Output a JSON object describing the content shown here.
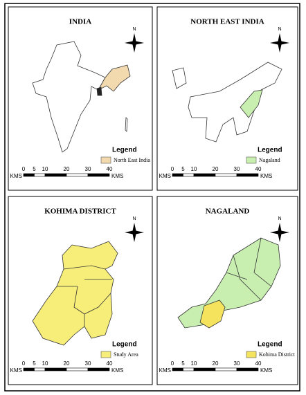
{
  "panels": [
    {
      "title": "INDIA",
      "north": "N",
      "legend": {
        "title": "Legend",
        "label": "North East India",
        "color": "#f3d9ae"
      },
      "scale": {
        "ticks": [
          "0",
          "5",
          "10",
          "20",
          "30",
          "40"
        ],
        "unit_left": "KMS",
        "unit_right": "KMS"
      }
    },
    {
      "title": "NORTH EAST INDIA",
      "north": "N",
      "legend": {
        "title": "Legend",
        "label": "Nagaland",
        "color": "#c8eeb0"
      },
      "scale": {
        "ticks": [
          "0",
          "5",
          "10",
          "20",
          "30",
          "40"
        ],
        "unit_left": "KMS",
        "unit_right": "KMS"
      }
    },
    {
      "title": "KOHIMA DISTRICT",
      "north": "N",
      "legend": {
        "title": "Legend",
        "label": "Study Area",
        "color": "#f7ee7a"
      },
      "scale": {
        "ticks": [
          "0",
          "5",
          "10",
          "20",
          "30",
          "40"
        ],
        "unit_left": "KMS",
        "unit_right": "KMS"
      }
    },
    {
      "title": "NAGALAND",
      "north": "N",
      "legend": {
        "title": "Legend",
        "label": "Kohima District",
        "color": "#f5e35e"
      },
      "scale": {
        "ticks": [
          "0",
          "5",
          "10",
          "20",
          "30",
          "40"
        ],
        "unit_left": "KMS",
        "unit_right": "KMS"
      }
    }
  ]
}
